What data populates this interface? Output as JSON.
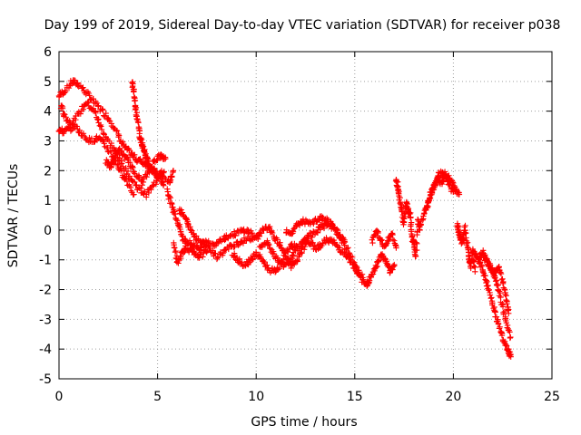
{
  "chart_data": {
    "type": "scatter",
    "title": "Day 199 of 2019, Sidereal Day-to-day VTEC variation (SDTVAR) for receiver p038",
    "xlabel": "GPS time / hours",
    "ylabel": "SDTVAR / TECUs",
    "xlim": [
      0,
      25
    ],
    "ylim": [
      -5,
      6
    ],
    "xticks": [
      "0",
      "5",
      "10",
      "15",
      "20",
      "25"
    ],
    "yticks": [
      "-5",
      "-4",
      "-3",
      "-2",
      "-1",
      "0",
      "1",
      "2",
      "3",
      "4",
      "5",
      "6"
    ],
    "grid": true,
    "marker": "plus",
    "color": "#ff0000",
    "series": [
      {
        "name": "SDTVAR",
        "tracks": [
          {
            "x": [
              0.0,
              0.3,
              0.7,
              1.0,
              1.4,
              1.8,
              2.2,
              2.6,
              3.0,
              3.3,
              3.6,
              3.9,
              4.2,
              4.5,
              4.8,
              5.1,
              5.3
            ],
            "y": [
              4.5,
              4.7,
              5.0,
              4.9,
              4.6,
              4.3,
              4.0,
              3.7,
              3.2,
              2.8,
              2.6,
              2.4,
              2.3,
              2.2,
              2.0,
              1.8,
              1.5
            ]
          },
          {
            "x": [
              0.1,
              0.3,
              0.6,
              1.0,
              1.4,
              1.8,
              2.1,
              2.5,
              2.9,
              3.2,
              3.6,
              4.0,
              4.4,
              4.8,
              5.2
            ],
            "y": [
              4.2,
              3.8,
              3.6,
              3.9,
              4.3,
              4.0,
              3.5,
              3.0,
              2.6,
              2.2,
              1.8,
              1.4,
              1.2,
              1.5,
              2.0
            ]
          },
          {
            "x": [
              0.0,
              0.2,
              0.5,
              0.8,
              1.2,
              1.6,
              2.0,
              2.4,
              2.8,
              3.1,
              3.4,
              3.8
            ],
            "y": [
              3.4,
              3.3,
              3.4,
              3.5,
              3.2,
              3.0,
              3.1,
              2.8,
              2.4,
              2.0,
              1.7,
              1.2
            ]
          },
          {
            "x": [
              2.4,
              2.6,
              2.8,
              3.0,
              3.3,
              3.6,
              3.9,
              4.2,
              4.5,
              4.8,
              5.1,
              5.4
            ],
            "y": [
              2.3,
              2.1,
              2.4,
              2.7,
              2.5,
              2.2,
              1.9,
              1.6,
              1.9,
              2.3,
              2.5,
              2.4
            ]
          },
          {
            "x": [
              3.7,
              3.8,
              3.9,
              4.0,
              4.1,
              4.2,
              4.3,
              4.4,
              4.5,
              4.6,
              4.8,
              5.0,
              5.3,
              5.6,
              5.8
            ],
            "y": [
              5.0,
              4.6,
              4.1,
              3.6,
              3.2,
              2.9,
              2.7,
              2.5,
              2.3,
              2.1,
              2.0,
              1.8,
              1.9,
              1.6,
              2.0
            ]
          },
          {
            "x": [
              5.5,
              5.7,
              5.9,
              6.1,
              6.3,
              6.5,
              6.8,
              7.1,
              7.4,
              7.8,
              8.2,
              8.6,
              9.0,
              9.4,
              9.8
            ],
            "y": [
              1.3,
              0.9,
              0.5,
              0.1,
              -0.3,
              -0.4,
              -0.5,
              -0.6,
              -0.4,
              -0.5,
              -0.3,
              -0.2,
              -0.1,
              0.0,
              -0.1
            ]
          },
          {
            "x": [
              5.8,
              6.0,
              6.2,
              6.4,
              6.7,
              7.0,
              7.3,
              7.6,
              8.0,
              8.4,
              8.8,
              9.2,
              9.6,
              10.0
            ],
            "y": [
              -0.4,
              -1.1,
              -0.8,
              -0.6,
              -0.7,
              -0.9,
              -0.8,
              -0.6,
              -0.9,
              -0.7,
              -0.5,
              -0.4,
              -0.3,
              -0.2
            ]
          },
          {
            "x": [
              6.1,
              6.4,
              6.6,
              6.9,
              7.2,
              7.5
            ],
            "y": [
              0.7,
              0.4,
              0.1,
              -0.2,
              -0.4,
              -0.5
            ]
          },
          {
            "x": [
              8.8,
              9.1,
              9.4,
              9.7,
              10.0,
              10.3,
              10.6,
              10.9,
              11.2,
              11.5,
              11.8,
              12.1,
              12.4,
              12.7,
              13.0,
              13.3,
              13.6,
              13.9,
              14.2,
              14.5,
              14.8,
              15.1,
              15.4
            ],
            "y": [
              -0.8,
              -1.0,
              -1.2,
              -1.0,
              -0.8,
              -1.0,
              -1.3,
              -1.4,
              -1.2,
              -0.8,
              -0.5,
              -0.6,
              -0.4,
              -0.2,
              -0.1,
              0.1,
              0.2,
              0.1,
              -0.2,
              -0.5,
              -0.9,
              -1.3,
              -1.6
            ]
          },
          {
            "x": [
              10.0,
              10.3,
              10.6,
              10.9,
              11.2,
              11.5,
              11.8,
              12.1,
              12.4,
              12.7,
              13.0,
              13.3,
              13.6,
              13.9,
              14.2,
              14.5,
              14.8,
              15.1,
              15.4,
              15.7
            ],
            "y": [
              -0.3,
              0.0,
              0.1,
              -0.2,
              -0.5,
              -0.9,
              -1.2,
              -1.0,
              -0.6,
              -0.4,
              -0.6,
              -0.5,
              -0.3,
              -0.4,
              -0.6,
              -0.8,
              -1.1,
              -1.4,
              -1.7,
              -1.8
            ]
          },
          {
            "x": [
              11.5,
              11.8,
              12.1,
              12.4,
              12.7,
              13.0,
              13.3,
              13.6,
              13.9,
              14.2,
              14.5
            ],
            "y": [
              0.0,
              -0.1,
              0.2,
              0.3,
              0.2,
              0.3,
              0.4,
              0.3,
              0.1,
              -0.1,
              -0.4
            ]
          },
          {
            "x": [
              10.2,
              10.5,
              10.8,
              11.1,
              11.4,
              11.7,
              12.0
            ],
            "y": [
              -0.6,
              -0.4,
              -0.7,
              -1.0,
              -1.2,
              -1.0,
              -0.7
            ]
          },
          {
            "x": [
              15.6,
              15.8,
              16.0,
              16.2,
              16.4,
              16.6,
              16.8,
              17.0
            ],
            "y": [
              -1.9,
              -1.6,
              -1.3,
              -1.0,
              -0.8,
              -1.1,
              -1.4,
              -1.2
            ]
          },
          {
            "x": [
              15.9,
              16.1,
              16.3,
              16.5,
              16.7,
              16.9,
              17.1
            ],
            "y": [
              -0.4,
              0.0,
              -0.3,
              -0.6,
              -0.3,
              -0.1,
              -0.6
            ]
          },
          {
            "x": [
              17.1,
              17.2,
              17.3,
              17.4,
              17.5,
              17.6,
              17.7,
              17.8,
              17.9,
              18.0,
              18.1,
              18.2,
              18.3
            ],
            "y": [
              1.7,
              1.4,
              1.0,
              0.6,
              0.2,
              0.9,
              0.7,
              0.5,
              -0.2,
              -0.5,
              -0.9,
              0.3,
              0.0
            ]
          },
          {
            "x": [
              18.3,
              18.5,
              18.7,
              18.9,
              19.1,
              19.3,
              19.5,
              19.7,
              19.9,
              20.1,
              20.3
            ],
            "y": [
              0.1,
              0.5,
              0.9,
              1.3,
              1.6,
              1.9,
              1.9,
              1.8,
              1.6,
              1.4,
              1.2
            ]
          },
          {
            "x": [
              18.6,
              18.8,
              19.0,
              19.2,
              19.4,
              19.6,
              19.8,
              20.0
            ],
            "y": [
              0.7,
              1.1,
              1.5,
              1.7,
              1.6,
              1.8,
              1.5,
              1.3
            ]
          },
          {
            "x": [
              20.2,
              20.3,
              20.4,
              20.5,
              20.6,
              20.7,
              20.8,
              20.9,
              21.0,
              21.1
            ],
            "y": [
              0.2,
              -0.1,
              -0.4,
              -0.3,
              0.1,
              -0.5,
              -0.9,
              -1.2,
              -0.8,
              -1.4
            ]
          },
          {
            "x": [
              21.0,
              21.2,
              21.4,
              21.6,
              21.8,
              22.0,
              22.2,
              22.4,
              22.6,
              22.8,
              22.9
            ],
            "y": [
              -0.7,
              -0.9,
              -1.2,
              -1.6,
              -2.0,
              -2.5,
              -3.0,
              -3.4,
              -3.8,
              -4.1,
              -4.2
            ]
          },
          {
            "x": [
              21.3,
              21.5,
              21.7,
              21.9,
              22.1,
              22.3,
              22.5,
              22.7,
              22.9
            ],
            "y": [
              -1.0,
              -0.7,
              -1.0,
              -1.3,
              -1.6,
              -2.0,
              -2.6,
              -3.1,
              -3.6
            ]
          },
          {
            "x": [
              21.5,
              21.8,
              22.1,
              22.3,
              22.5,
              22.7,
              22.8
            ],
            "y": [
              -0.9,
              -1.1,
              -1.5,
              -1.2,
              -1.7,
              -2.3,
              -2.8
            ]
          }
        ]
      }
    ]
  }
}
